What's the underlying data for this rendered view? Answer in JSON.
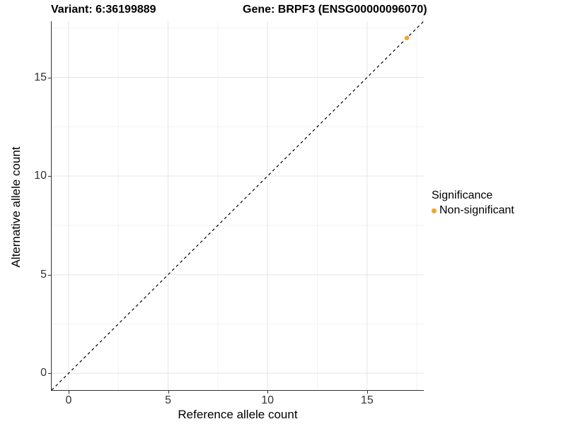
{
  "titles": {
    "variant": "Variant: 6:36199889",
    "gene": "Gene: BRPF3 (ENSG00000096070)"
  },
  "legend": {
    "title": "Significance",
    "items": [
      {
        "label": "Non-significant",
        "color": "#F9A12B"
      }
    ]
  },
  "chart_data": {
    "type": "scatter",
    "title": "Variant: 6:36199889   Gene: BRPF3 (ENSG00000096070)",
    "xlabel": "Reference allele count",
    "ylabel": "Alternative allele count",
    "xlim": [
      -0.85,
      17.85
    ],
    "ylim": [
      -0.85,
      17.85
    ],
    "x_major_ticks": [
      0,
      5,
      10,
      15
    ],
    "y_major_ticks": [
      0,
      5,
      10,
      15
    ],
    "x_minor_ticks": [
      2.5,
      7.5,
      12.5,
      17.5
    ],
    "y_minor_ticks": [
      2.5,
      7.5,
      12.5,
      17.5
    ],
    "grid": "on",
    "legend_position": "right",
    "series": [
      {
        "name": "Non-significant",
        "color": "#F9A12B",
        "points": [
          {
            "x": 17,
            "y": 17
          }
        ]
      }
    ],
    "reference_line": {
      "type": "identity",
      "slope": 1,
      "intercept": 0,
      "style": "dashed",
      "color": "#000000"
    },
    "colors": {
      "grid_major": "#E6E6E6",
      "grid_minor": "#F2F2F2",
      "axis_line": "#333333",
      "tick_label": "#333333",
      "point": "#F9A12B"
    }
  }
}
